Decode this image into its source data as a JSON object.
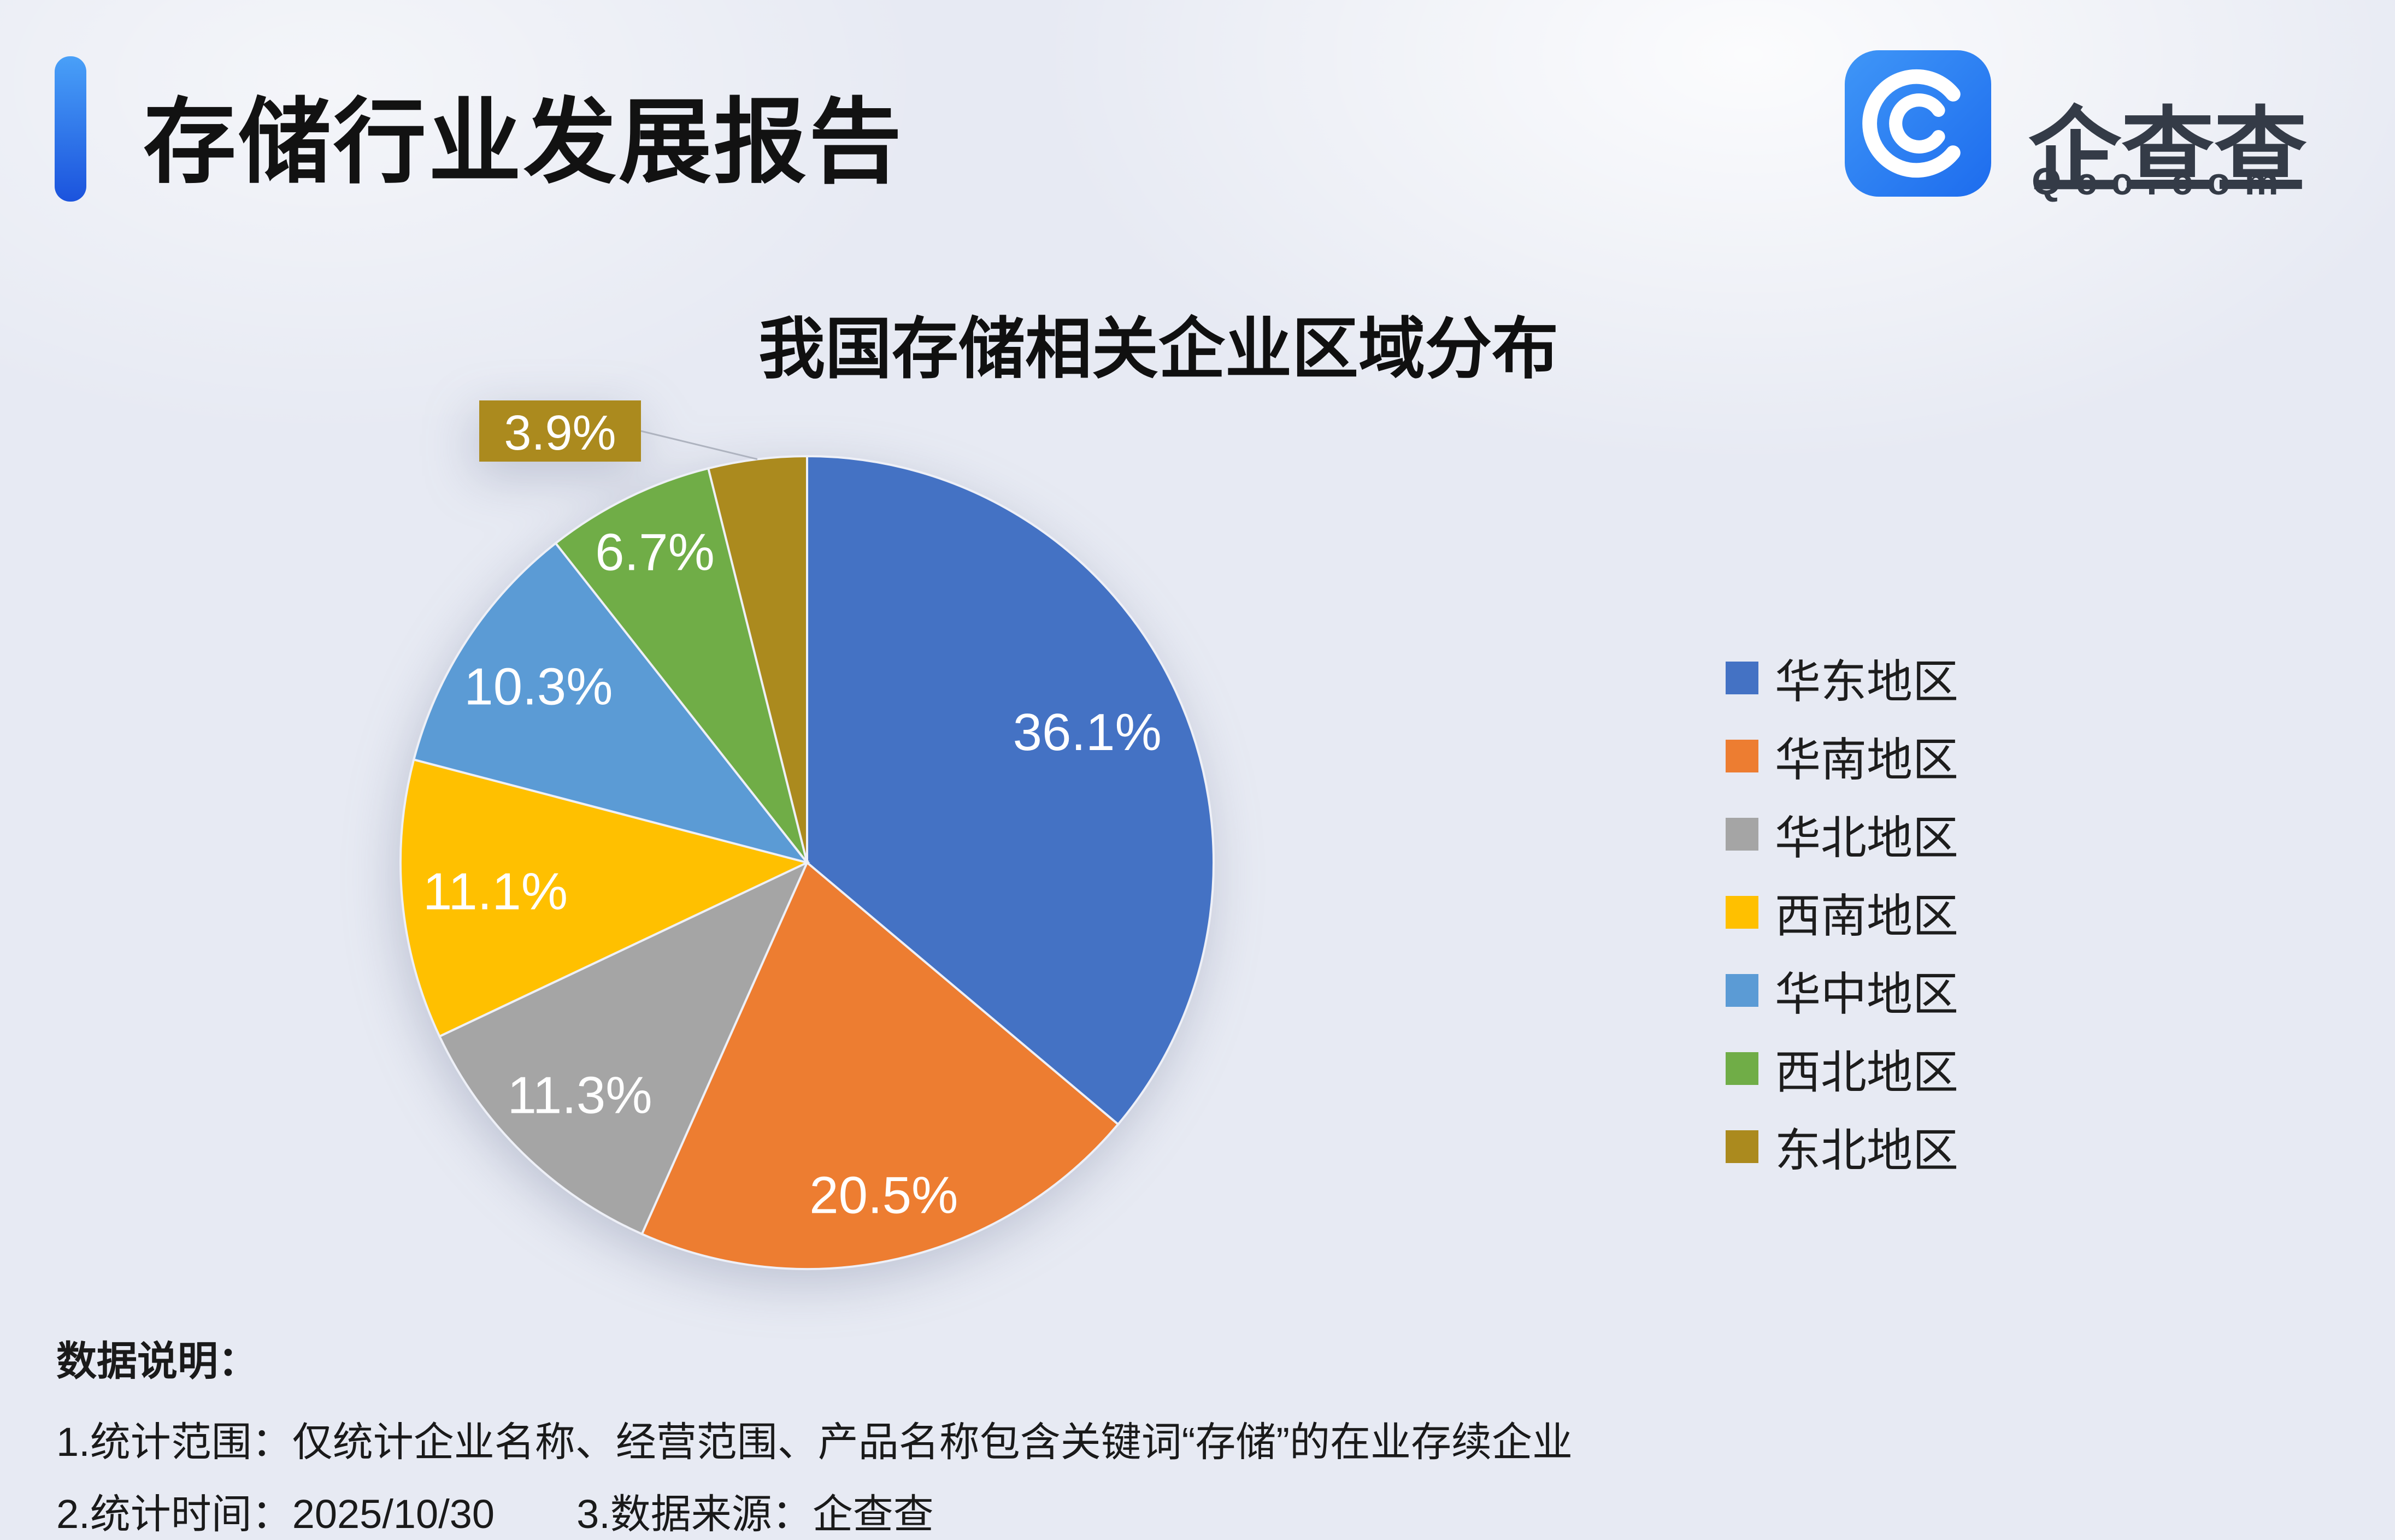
{
  "header": {
    "title": "存储行业发展报告"
  },
  "logo": {
    "name": "企查查",
    "domain": "Qcc.com",
    "brand_color": "#2b7df3"
  },
  "chart_data": {
    "type": "pie",
    "title": "我国存储相关企业区域分布",
    "categories": [
      "华东地区",
      "华南地区",
      "华北地区",
      "西南地区",
      "华中地区",
      "西北地区",
      "东北地区"
    ],
    "values": [
      36.1,
      20.5,
      11.3,
      11.1,
      10.3,
      6.7,
      3.9
    ],
    "labels": [
      "36.1%",
      "20.5%",
      "11.3%",
      "11.1%",
      "10.3%",
      "6.7%",
      "3.9%"
    ],
    "colors": [
      "#4472c4",
      "#ed7d31",
      "#a5a5a5",
      "#ffc000",
      "#5b9bd5",
      "#70ad47",
      "#ab8a1e"
    ],
    "unit": "%",
    "legend_position": "right",
    "start_angle_deg": 0,
    "direction": "clockwise",
    "callout_index": 6
  },
  "notes": {
    "heading": "数据说明：",
    "line1": "1.统计范围：仅统计企业名称、经营范围、产品名称包含关键词“存储”的在业存续企业",
    "line2_time": "2.统计时间：2025/10/30",
    "line2_source": "3.数据来源：企查查"
  }
}
